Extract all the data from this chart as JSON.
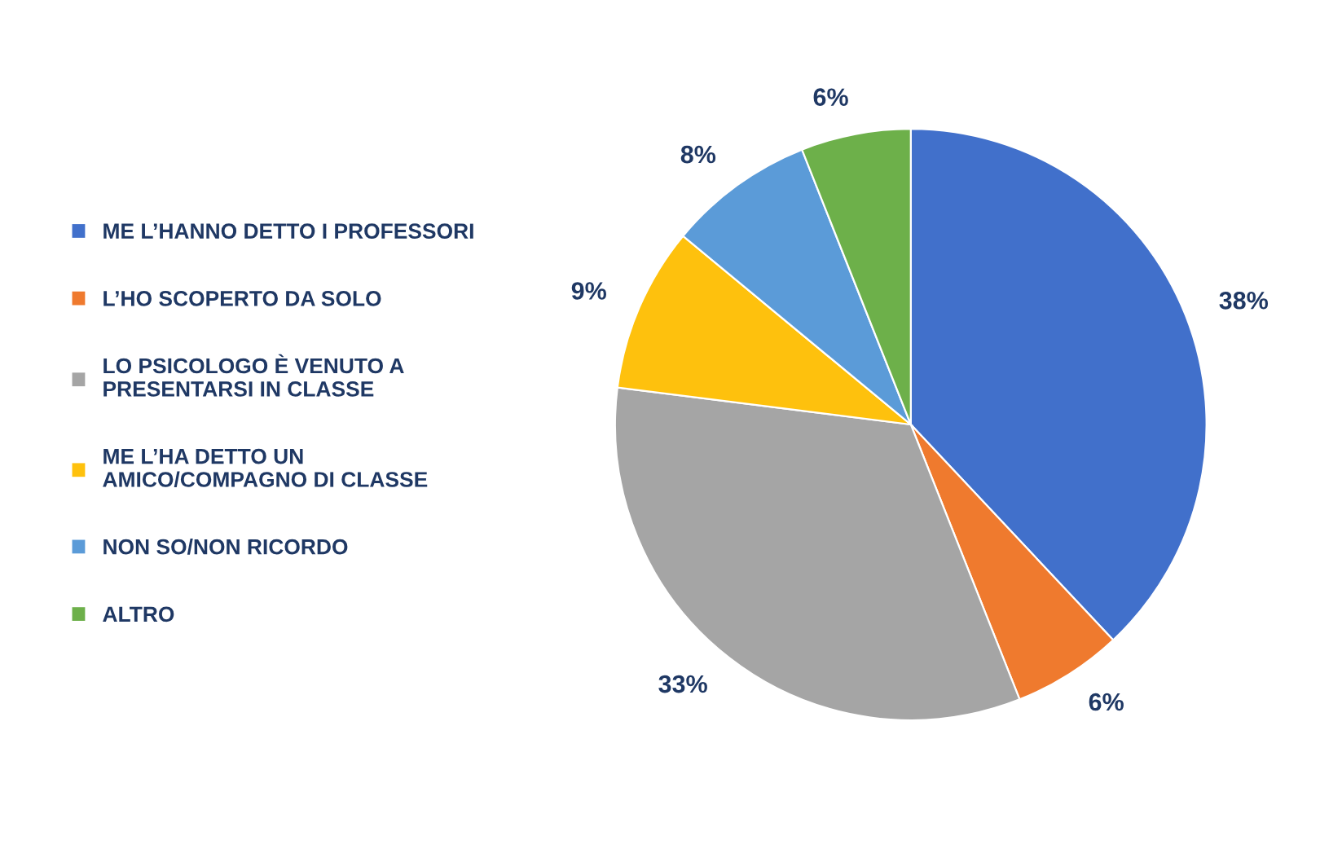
{
  "chart_data": {
    "type": "pie",
    "categories": [
      "ME L’HANNO DETTO I PROFESSORI",
      "L’HO SCOPERTO DA SOLO",
      "LO PSICOLOGO È VENUTO A\nPRESENTARSI IN CLASSE",
      "ME L’HA DETTO UN\nAMICO/COMPAGNO DI CLASSE",
      "NON SO/NON RICORDO",
      "ALTRO"
    ],
    "values": [
      38,
      6,
      33,
      9,
      8,
      6
    ],
    "colors": [
      "#4170cb",
      "#ef7a2e",
      "#a5a5a5",
      "#fec10d",
      "#5b9bd8",
      "#6db04a"
    ],
    "value_labels": [
      "38%",
      "6%",
      "33%",
      "9%",
      "8%",
      "6%"
    ],
    "legend": "left"
  }
}
